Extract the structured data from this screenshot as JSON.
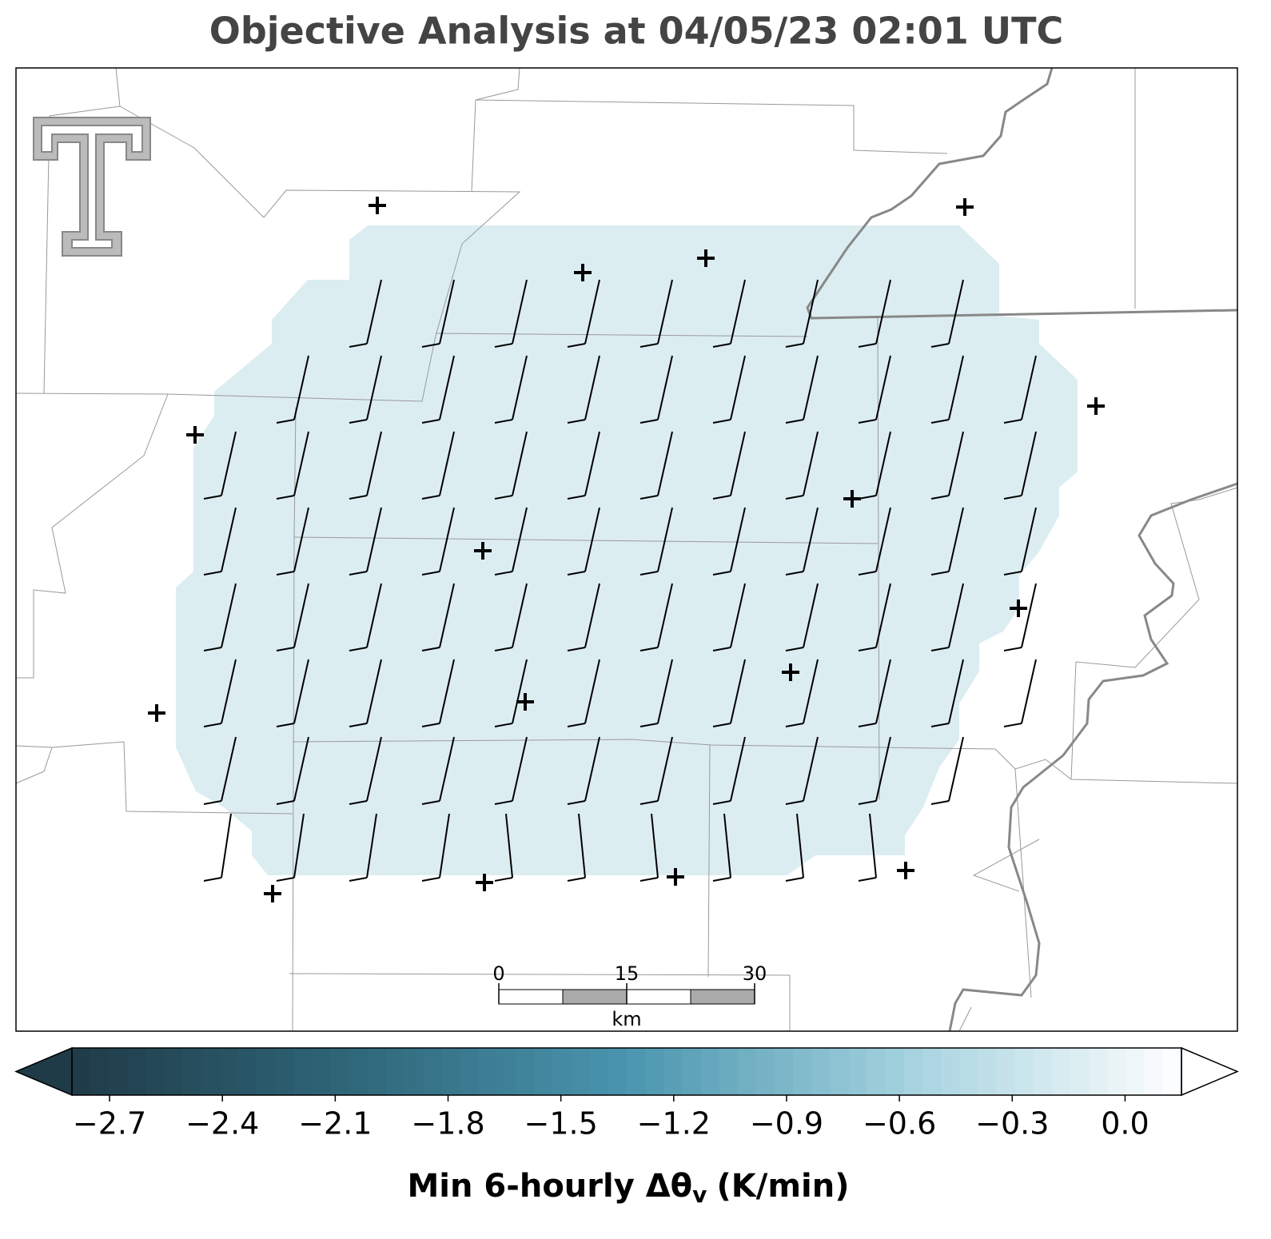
{
  "title": "Objective Analysis at 04/05/23 02:01 UTC",
  "scale_bar": {
    "ticks": [
      0,
      15,
      30
    ],
    "unit": "km"
  },
  "colorbar": {
    "lim": [
      -2.8,
      0.15
    ],
    "ticks": [
      {
        "value": -2.7,
        "label": "−2.7"
      },
      {
        "value": -2.4,
        "label": "−2.4"
      },
      {
        "value": -2.1,
        "label": "−2.1"
      },
      {
        "value": -1.8,
        "label": "−1.8"
      },
      {
        "value": -1.5,
        "label": "−1.5"
      },
      {
        "value": -1.2,
        "label": "−1.2"
      },
      {
        "value": -0.9,
        "label": "−0.9"
      },
      {
        "value": -0.6,
        "label": "−0.6"
      },
      {
        "value": -0.3,
        "label": "−0.3"
      },
      {
        "value": 0,
        "label": "0.0"
      }
    ],
    "colors": [
      "#1f3b47",
      "#2f6679",
      "#4a95ae",
      "#a3d1de",
      "#ffffff"
    ],
    "label": "Min 6-hourly Δθ",
    "label_subscript": "v",
    "label_units": "(K/min)"
  }
}
